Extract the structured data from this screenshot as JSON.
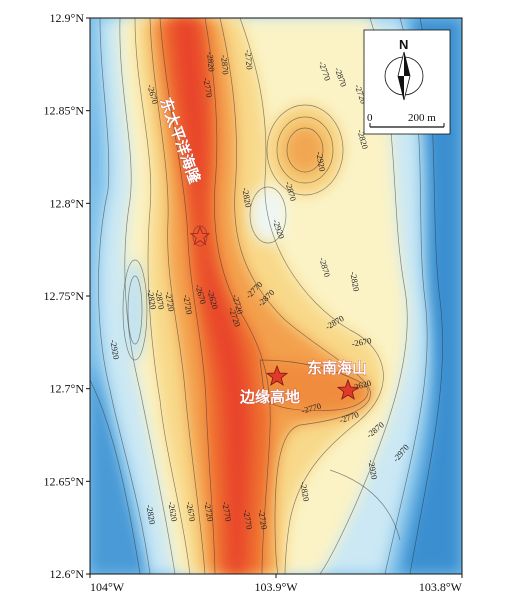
{
  "axes": {
    "lat_ticks": [
      "12.9°N",
      "12.85°N",
      "12.8°N",
      "12.75°N",
      "12.7°N",
      "12.65°N",
      "12.6°N"
    ],
    "lon_ticks": [
      "104°W",
      "103.9°W",
      "103.8°W"
    ]
  },
  "places": {
    "ridge": "东太平洋海隆",
    "edge_highland": "边缘高地",
    "southeast_seamount": "东南海山"
  },
  "contour_labels": [
    "-2670",
    "-2770",
    "-2820",
    "-2870",
    "-2720",
    "-2870",
    "-2770",
    "-2720",
    "-2820",
    "-2920",
    "-2870",
    "-2820",
    "-2920",
    "-2820",
    "-2870",
    "-2720",
    "-2770",
    "-2870",
    "-2770",
    "-2720",
    "-2620",
    "-2670",
    "-2720",
    "-2820",
    "-2870",
    "-2720",
    "-2770",
    "-2670",
    "-2620",
    "-2920",
    "-2870",
    "-2820",
    "-2770",
    "-2720",
    "-2670",
    "-2620",
    "-2720",
    "-2770",
    "-2870",
    "-2920",
    "-2970",
    "-2820"
  ],
  "scale_bar": {
    "start": "0",
    "end": "200 m"
  },
  "north_arrow": {
    "label": "N"
  },
  "colors": {
    "deep": "#3b8fd0",
    "mid_deep": "#7fc1ea",
    "shallow_blue": "#cbe8f4",
    "pale": "#fbf3c6",
    "yellow": "#f8d98a",
    "orange": "#f3a04d",
    "red_orange": "#ee6a2e",
    "crest": "#e8452a",
    "star": "#e03a2a"
  }
}
